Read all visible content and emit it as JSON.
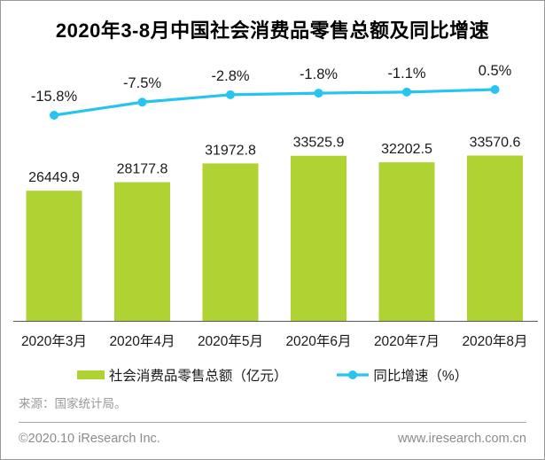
{
  "title": "2020年3-8月中国社会消费品零售总额及同比增速",
  "chart_data": {
    "type": "bar",
    "subtype": "bar-with-line-overlay",
    "categories": [
      "2020年3月",
      "2020年4月",
      "2020年5月",
      "2020年6月",
      "2020年7月",
      "2020年8月"
    ],
    "series": [
      {
        "name": "社会消费品零售总额（亿元）",
        "type": "bar",
        "values": [
          26449.9,
          28177.8,
          31972.8,
          33525.9,
          32202.5,
          33570.6
        ],
        "labels": [
          "26449.9",
          "28177.8",
          "31972.8",
          "33525.9",
          "32202.5",
          "33570.6"
        ],
        "color": "#AED333"
      },
      {
        "name": "同比增速（%）",
        "type": "line",
        "values": [
          -15.8,
          -7.5,
          -2.8,
          -1.8,
          -1.1,
          0.5
        ],
        "labels": [
          "-15.8%",
          "-7.5%",
          "-2.8%",
          "-1.8%",
          "-1.1%",
          "0.5%"
        ],
        "color": "#28C4F0"
      }
    ],
    "title": "2020年3-8月中国社会消费品零售总额及同比增速",
    "xlabel": "",
    "ylabel": "",
    "grid": false,
    "y_axis_visible": false,
    "legend_position": "bottom",
    "data_labels_visible": true
  },
  "legend": {
    "bar_label": "社会消费品零售总额（亿元）",
    "line_label": "同比增速（%）"
  },
  "source": "来源：国家统计局。",
  "footer": {
    "left": "©2020.10 iResearch Inc.",
    "right": "www.iresearch.com.cn"
  },
  "colors": {
    "bar": "#AED333",
    "line": "#28C4F0",
    "title_text": "#000000",
    "label_text": "#1a1a1a",
    "axis_line": "#595959",
    "source_text": "#999999",
    "footer_text": "#8c8c8c",
    "frame_border": "#999999"
  }
}
